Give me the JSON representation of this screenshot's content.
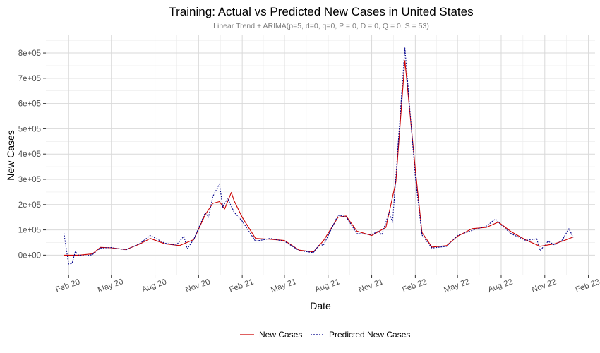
{
  "chart_data": {
    "type": "line",
    "title": "Training: Actual vs Predicted New Cases in United States",
    "subtitle": "Linear Trend + ARIMA(p=5, d=0, q=0, P = 0, D = 0, Q = 0, S = 53)",
    "xlabel": "Date",
    "ylabel": "New Cases",
    "x_range": [
      "2019-12-15",
      "2023-02-15"
    ],
    "ylim": [
      -80000,
      870000
    ],
    "x_ticks": [
      {
        "date": "2020-02-01",
        "label": "Feb 20"
      },
      {
        "date": "2020-05-01",
        "label": "May 20"
      },
      {
        "date": "2020-08-01",
        "label": "Aug 20"
      },
      {
        "date": "2020-11-01",
        "label": "Nov 20"
      },
      {
        "date": "2021-02-01",
        "label": "Feb 21"
      },
      {
        "date": "2021-05-01",
        "label": "May 21"
      },
      {
        "date": "2021-08-01",
        "label": "Aug 21"
      },
      {
        "date": "2021-11-01",
        "label": "Nov 21"
      },
      {
        "date": "2022-02-01",
        "label": "Feb 22"
      },
      {
        "date": "2022-05-01",
        "label": "May 22"
      },
      {
        "date": "2022-08-01",
        "label": "Aug 22"
      },
      {
        "date": "2022-11-01",
        "label": "Nov 22"
      },
      {
        "date": "2023-02-01",
        "label": "Feb 23"
      }
    ],
    "y_ticks": [
      {
        "value": 0,
        "label": "0e+00"
      },
      {
        "value": 100000,
        "label": "1e+05"
      },
      {
        "value": 200000,
        "label": "2e+05"
      },
      {
        "value": 300000,
        "label": "3e+05"
      },
      {
        "value": 400000,
        "label": "4e+05"
      },
      {
        "value": 500000,
        "label": "5e+05"
      },
      {
        "value": 600000,
        "label": "6e+05"
      },
      {
        "value": 700000,
        "label": "7e+05"
      },
      {
        "value": 800000,
        "label": "8e+05"
      }
    ],
    "grid": true,
    "legend": {
      "position": "bottom"
    },
    "series": [
      {
        "name": "New Cases",
        "color": "#cc0000",
        "dash": "solid",
        "points": [
          [
            "2020-01-22",
            0
          ],
          [
            "2020-02-22",
            0
          ],
          [
            "2020-03-22",
            5000
          ],
          [
            "2020-04-08",
            31000
          ],
          [
            "2020-05-01",
            29000
          ],
          [
            "2020-06-01",
            22000
          ],
          [
            "2020-07-01",
            45000
          ],
          [
            "2020-07-22",
            66000
          ],
          [
            "2020-08-22",
            45000
          ],
          [
            "2020-09-22",
            38000
          ],
          [
            "2020-10-22",
            62000
          ],
          [
            "2020-11-15",
            160000
          ],
          [
            "2020-12-01",
            205000
          ],
          [
            "2020-12-15",
            212000
          ],
          [
            "2020-12-26",
            183000
          ],
          [
            "2021-01-09",
            248000
          ],
          [
            "2021-01-15",
            215000
          ],
          [
            "2021-02-01",
            150000
          ],
          [
            "2021-03-01",
            66000
          ],
          [
            "2021-04-01",
            63000
          ],
          [
            "2021-05-01",
            58000
          ],
          [
            "2021-06-01",
            20000
          ],
          [
            "2021-07-01",
            13000
          ],
          [
            "2021-07-22",
            56000
          ],
          [
            "2021-08-22",
            150000
          ],
          [
            "2021-09-08",
            155000
          ],
          [
            "2021-10-01",
            95000
          ],
          [
            "2021-11-01",
            78000
          ],
          [
            "2021-12-01",
            110000
          ],
          [
            "2021-12-22",
            290000
          ],
          [
            "2022-01-10",
            770000
          ],
          [
            "2022-02-01",
            340000
          ],
          [
            "2022-02-15",
            90000
          ],
          [
            "2022-03-08",
            32000
          ],
          [
            "2022-04-08",
            38000
          ],
          [
            "2022-05-01",
            75000
          ],
          [
            "2022-06-01",
            105000
          ],
          [
            "2022-07-01",
            110000
          ],
          [
            "2022-07-26",
            131000
          ],
          [
            "2022-08-22",
            93000
          ],
          [
            "2022-09-22",
            60000
          ],
          [
            "2022-10-22",
            35000
          ],
          [
            "2022-11-22",
            45000
          ],
          [
            "2022-12-15",
            60000
          ],
          [
            "2022-12-31",
            72000
          ]
        ]
      },
      {
        "name": "Predicted New Cases",
        "color": "#00008b",
        "dash": "dotted",
        "points": [
          [
            "2020-01-22",
            88000
          ],
          [
            "2020-02-01",
            -35000
          ],
          [
            "2020-02-08",
            -33000
          ],
          [
            "2020-02-15",
            14000
          ],
          [
            "2020-02-22",
            0
          ],
          [
            "2020-03-08",
            -3000
          ],
          [
            "2020-03-22",
            2000
          ],
          [
            "2020-04-08",
            28000
          ],
          [
            "2020-05-01",
            30000
          ],
          [
            "2020-06-01",
            21000
          ],
          [
            "2020-07-01",
            47000
          ],
          [
            "2020-07-22",
            78000
          ],
          [
            "2020-08-22",
            47000
          ],
          [
            "2020-09-15",
            40000
          ],
          [
            "2020-10-01",
            75000
          ],
          [
            "2020-10-08",
            25000
          ],
          [
            "2020-10-22",
            63000
          ],
          [
            "2020-11-15",
            168000
          ],
          [
            "2020-11-22",
            150000
          ],
          [
            "2020-12-01",
            232000
          ],
          [
            "2020-12-15",
            282000
          ],
          [
            "2020-12-22",
            190000
          ],
          [
            "2021-01-01",
            225000
          ],
          [
            "2021-01-15",
            170000
          ],
          [
            "2021-02-01",
            135000
          ],
          [
            "2021-03-01",
            55000
          ],
          [
            "2021-04-01",
            66000
          ],
          [
            "2021-05-01",
            55000
          ],
          [
            "2021-06-01",
            18000
          ],
          [
            "2021-07-01",
            10000
          ],
          [
            "2021-07-15",
            45000
          ],
          [
            "2021-07-22",
            38000
          ],
          [
            "2021-08-22",
            158000
          ],
          [
            "2021-09-08",
            152000
          ],
          [
            "2021-10-01",
            85000
          ],
          [
            "2021-11-01",
            82000
          ],
          [
            "2021-11-15",
            95000
          ],
          [
            "2021-11-22",
            80000
          ],
          [
            "2021-12-08",
            170000
          ],
          [
            "2021-12-15",
            130000
          ],
          [
            "2021-12-22",
            310000
          ],
          [
            "2022-01-10",
            820000
          ],
          [
            "2022-02-01",
            310000
          ],
          [
            "2022-02-15",
            80000
          ],
          [
            "2022-03-08",
            28000
          ],
          [
            "2022-04-08",
            35000
          ],
          [
            "2022-05-01",
            78000
          ],
          [
            "2022-06-01",
            98000
          ],
          [
            "2022-07-01",
            115000
          ],
          [
            "2022-07-20",
            143000
          ],
          [
            "2022-08-01",
            120000
          ],
          [
            "2022-08-22",
            85000
          ],
          [
            "2022-09-22",
            58000
          ],
          [
            "2022-10-15",
            65000
          ],
          [
            "2022-10-22",
            18000
          ],
          [
            "2022-11-08",
            55000
          ],
          [
            "2022-11-22",
            40000
          ],
          [
            "2022-12-08",
            60000
          ],
          [
            "2022-12-22",
            105000
          ],
          [
            "2022-12-31",
            70000
          ]
        ]
      }
    ]
  }
}
